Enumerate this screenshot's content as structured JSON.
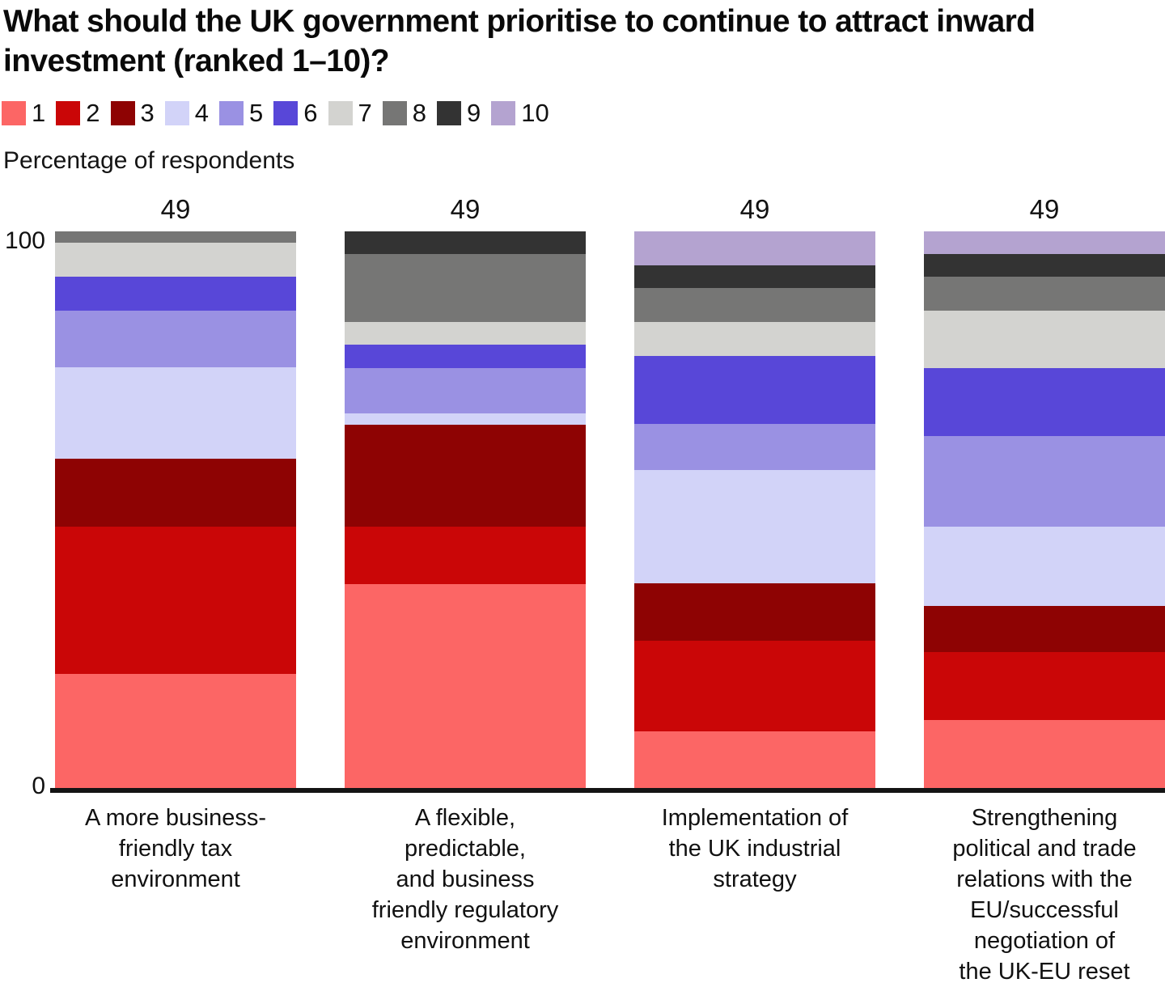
{
  "header": {
    "title": "What should the UK government prioritise to continue to attract inward investment (ranked 1–10)?"
  },
  "chart_data": {
    "type": "bar",
    "stacked": true,
    "ylabel": "Percentage of respondents",
    "ylim": [
      0,
      100
    ],
    "yticks": [
      "0",
      "100"
    ],
    "grid": false,
    "legend_position": "top",
    "totals": [
      49,
      49,
      49,
      49
    ],
    "categories": [
      "A more business-\nfriendly tax\nenvironment",
      "A flexible,\npredictable,\nand business\nfriendly regulatory\nenvironment",
      "Implementation of\nthe UK industrial\nstrategy",
      "Strengthening\npolitical and trade\nrelations with the\nEU/successful\nnegotiation of\nthe UK-EU reset"
    ],
    "series": [
      {
        "name": "1",
        "color": "#fc6665",
        "values": [
          20.4,
          36.7,
          10.2,
          12.2
        ]
      },
      {
        "name": "2",
        "color": "#ca0607",
        "values": [
          26.5,
          10.2,
          16.3,
          12.2
        ]
      },
      {
        "name": "3",
        "color": "#8e0303",
        "values": [
          12.2,
          18.4,
          10.2,
          8.2
        ]
      },
      {
        "name": "4",
        "color": "#d2d3f8",
        "values": [
          16.3,
          2.0,
          20.4,
          14.3
        ]
      },
      {
        "name": "5",
        "color": "#9a91e3",
        "values": [
          10.2,
          8.2,
          8.2,
          16.3
        ]
      },
      {
        "name": "6",
        "color": "#5847d8",
        "values": [
          6.1,
          4.1,
          12.2,
          12.2
        ]
      },
      {
        "name": "7",
        "color": "#d3d3d0",
        "values": [
          6.1,
          4.1,
          6.1,
          10.2
        ]
      },
      {
        "name": "8",
        "color": "#767675",
        "values": [
          2.0,
          12.2,
          6.1,
          6.1
        ]
      },
      {
        "name": "9",
        "color": "#333333",
        "values": [
          0,
          4.1,
          4.1,
          4.1
        ]
      },
      {
        "name": "10",
        "color": "#b4a3d0",
        "values": [
          0,
          0,
          6.1,
          4.1
        ]
      }
    ]
  }
}
